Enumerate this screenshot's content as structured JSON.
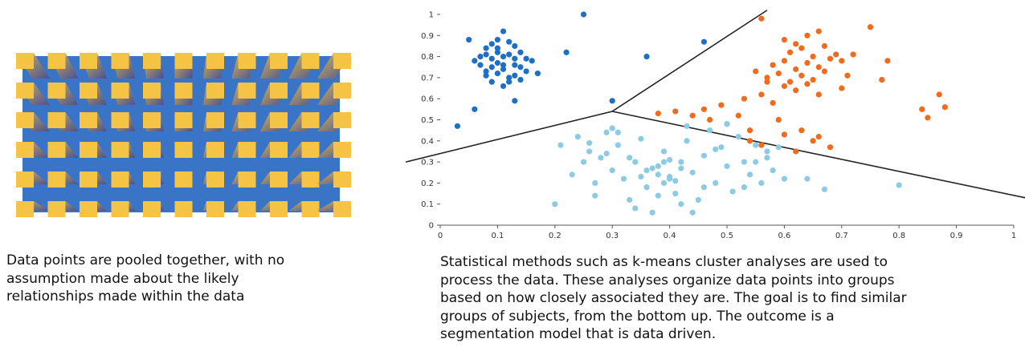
{
  "captions": {
    "left": [
      "Data points are pooled together, with no",
      "assumption made about the likely",
      "relationships made within the data"
    ],
    "right": [
      "Statistical methods such as k-means cluster analyses are used to",
      "process the data. These analyses organize data points into groups",
      "based on how closely associated they are. The goal is to find similar",
      "groups of subjects, from the bottom up. The outcome is a",
      "segmentation model that is data driven."
    ]
  },
  "chart_data": {
    "type": "scatter",
    "xlim": [
      0,
      1
    ],
    "ylim": [
      0,
      1
    ],
    "xticks": [
      0,
      0.1,
      0.2,
      0.3,
      0.4,
      0.5,
      0.6,
      0.7,
      0.8,
      0.9,
      1
    ],
    "yticks": [
      0,
      0.1,
      0.2,
      0.3,
      0.4,
      0.5,
      0.6,
      0.7,
      0.8,
      0.9,
      1
    ],
    "series": [
      {
        "color": "#1f6fc5",
        "x": [
          0.03,
          0.05,
          0.06,
          0.25,
          0.22,
          0.36,
          0.46,
          0.3,
          0.13,
          0.08,
          0.09,
          0.1,
          0.11,
          0.12,
          0.13,
          0.07,
          0.08,
          0.09,
          0.1,
          0.11,
          0.12,
          0.14,
          0.15,
          0.07,
          0.09,
          0.1,
          0.11,
          0.13,
          0.14,
          0.16,
          0.08,
          0.1,
          0.12,
          0.13,
          0.15,
          0.09,
          0.11,
          0.12,
          0.06,
          0.17,
          0.1,
          0.14,
          0.11,
          0.08,
          0.13
        ],
        "y": [
          0.47,
          0.88,
          0.55,
          1.0,
          0.82,
          0.8,
          0.87,
          0.59,
          0.59,
          0.84,
          0.86,
          0.88,
          0.92,
          0.87,
          0.85,
          0.8,
          0.81,
          0.79,
          0.82,
          0.8,
          0.81,
          0.82,
          0.79,
          0.76,
          0.75,
          0.77,
          0.74,
          0.76,
          0.75,
          0.78,
          0.71,
          0.72,
          0.7,
          0.71,
          0.73,
          0.68,
          0.66,
          0.68,
          0.78,
          0.72,
          0.84,
          0.69,
          0.76,
          0.73,
          0.79
        ]
      },
      {
        "color": "#f26b1d",
        "x": [
          0.56,
          0.75,
          0.78,
          0.77,
          0.84,
          0.85,
          0.87,
          0.88,
          0.38,
          0.41,
          0.44,
          0.47,
          0.5,
          0.52,
          0.54,
          0.46,
          0.49,
          0.53,
          0.56,
          0.58,
          0.6,
          0.62,
          0.64,
          0.66,
          0.57,
          0.59,
          0.61,
          0.63,
          0.65,
          0.67,
          0.58,
          0.6,
          0.62,
          0.64,
          0.66,
          0.68,
          0.61,
          0.63,
          0.65,
          0.67,
          0.69,
          0.7,
          0.6,
          0.62,
          0.64,
          0.66,
          0.55,
          0.57,
          0.72,
          0.71,
          0.63,
          0.65,
          0.54,
          0.56,
          0.6,
          0.62,
          0.66,
          0.68,
          0.59,
          0.7
        ],
        "y": [
          0.98,
          0.94,
          0.78,
          0.69,
          0.55,
          0.51,
          0.62,
          0.56,
          0.53,
          0.54,
          0.52,
          0.5,
          0.48,
          0.52,
          0.45,
          0.55,
          0.57,
          0.6,
          0.62,
          0.58,
          0.66,
          0.64,
          0.67,
          0.62,
          0.7,
          0.72,
          0.68,
          0.71,
          0.69,
          0.73,
          0.76,
          0.78,
          0.74,
          0.77,
          0.75,
          0.79,
          0.82,
          0.84,
          0.8,
          0.85,
          0.81,
          0.78,
          0.88,
          0.86,
          0.9,
          0.92,
          0.73,
          0.68,
          0.81,
          0.71,
          0.45,
          0.4,
          0.4,
          0.38,
          0.43,
          0.35,
          0.42,
          0.37,
          0.5,
          0.65
        ]
      },
      {
        "color": "#8ccbe4",
        "x": [
          0.2,
          0.67,
          0.8,
          0.64,
          0.21,
          0.23,
          0.24,
          0.25,
          0.26,
          0.27,
          0.28,
          0.29,
          0.3,
          0.31,
          0.32,
          0.33,
          0.34,
          0.35,
          0.36,
          0.37,
          0.38,
          0.39,
          0.4,
          0.41,
          0.42,
          0.43,
          0.44,
          0.45,
          0.46,
          0.47,
          0.48,
          0.49,
          0.5,
          0.51,
          0.52,
          0.53,
          0.54,
          0.55,
          0.56,
          0.57,
          0.58,
          0.59,
          0.6,
          0.36,
          0.38,
          0.39,
          0.4,
          0.41,
          0.37,
          0.35,
          0.33,
          0.31,
          0.29,
          0.27,
          0.42,
          0.44,
          0.46,
          0.48,
          0.5,
          0.34,
          0.38,
          0.43,
          0.3,
          0.26,
          0.53,
          0.55,
          0.57,
          0.39,
          0.4,
          0.42
        ],
        "y": [
          0.1,
          0.17,
          0.19,
          0.22,
          0.38,
          0.24,
          0.42,
          0.3,
          0.35,
          0.2,
          0.32,
          0.44,
          0.26,
          0.38,
          0.22,
          0.12,
          0.3,
          0.41,
          0.18,
          0.06,
          0.28,
          0.35,
          0.22,
          0.15,
          0.3,
          0.4,
          0.25,
          0.12,
          0.33,
          0.45,
          0.2,
          0.37,
          0.28,
          0.16,
          0.42,
          0.3,
          0.24,
          0.38,
          0.2,
          0.32,
          0.26,
          0.37,
          0.22,
          0.26,
          0.24,
          0.2,
          0.23,
          0.21,
          0.27,
          0.23,
          0.32,
          0.44,
          0.34,
          0.14,
          0.1,
          0.06,
          0.18,
          0.36,
          0.48,
          0.08,
          0.14,
          0.47,
          0.46,
          0.39,
          0.18,
          0.3,
          0.35,
          0.3,
          0.31,
          0.27
        ]
      }
    ],
    "boundaries": [
      {
        "x": [
          -0.06,
          0.3
        ],
        "y": [
          0.3,
          0.54
        ]
      },
      {
        "x": [
          0.3,
          0.57
        ],
        "y": [
          0.54,
          1.02
        ]
      },
      {
        "x": [
          0.3,
          1.02
        ],
        "y": [
          0.54,
          0.13
        ]
      }
    ]
  }
}
